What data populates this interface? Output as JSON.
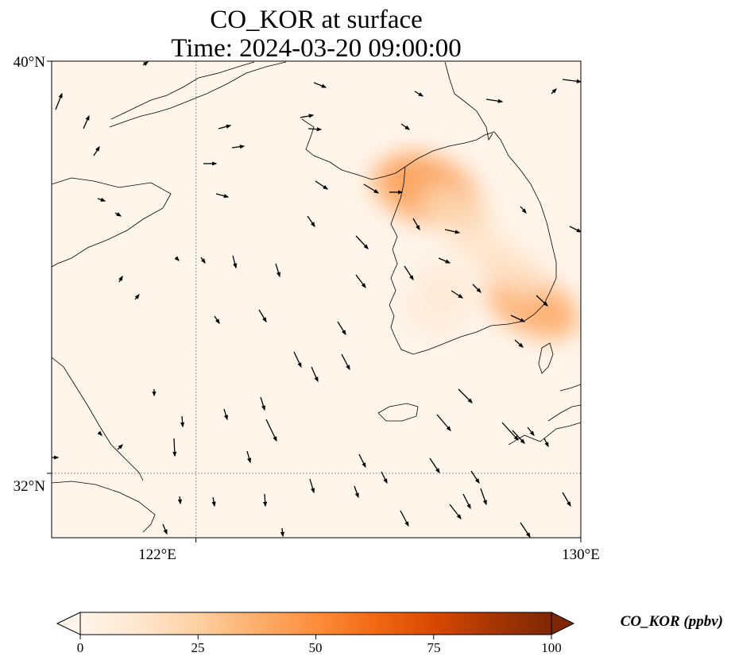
{
  "title": {
    "line1": "CO_KOR at surface",
    "line2": "Time: 2024-03-20 09:00:00"
  },
  "map": {
    "lon_range": [
      119,
      130
    ],
    "lat_range": [
      30.75,
      40
    ],
    "lat_ticks": [
      {
        "value": 40,
        "label": "40°N"
      },
      {
        "value": 32,
        "label": "32°N"
      }
    ],
    "lon_ticks": [
      {
        "value": 122,
        "label": "122°E"
      },
      {
        "value": 130,
        "label": "130°E"
      }
    ],
    "gridlines": "dotted",
    "background_color": "#fff5eb",
    "concentration_hotspots": [
      {
        "lon": 126.9,
        "lat": 37.55,
        "value": 45
      },
      {
        "lon": 126.6,
        "lat": 37.45,
        "value": 40
      },
      {
        "lon": 129.0,
        "lat": 35.25,
        "value": 40
      },
      {
        "lon": 127.4,
        "lat": 37.1,
        "value": 20
      },
      {
        "lon": 127.9,
        "lat": 36.4,
        "value": 14
      },
      {
        "lon": 128.6,
        "lat": 35.9,
        "value": 16
      },
      {
        "lon": 127.2,
        "lat": 35.6,
        "value": 10
      },
      {
        "lon": 126.9,
        "lat": 35.1,
        "value": 8
      }
    ]
  },
  "colorbar": {
    "label": "CO_KOR (ppbv)",
    "min": 0,
    "max": 100,
    "ticks": [
      {
        "value": 0,
        "label": "0"
      },
      {
        "value": 25,
        "label": "25"
      },
      {
        "value": 50,
        "label": "50"
      },
      {
        "value": 75,
        "label": "75"
      },
      {
        "value": 100,
        "label": "100"
      }
    ],
    "colors": [
      "#fff5eb",
      "#fee6ce",
      "#fdd0a2",
      "#fdae6b",
      "#fd8d3c",
      "#f16913",
      "#d94801",
      "#a63603",
      "#7f2704"
    ],
    "extend": "both"
  }
}
